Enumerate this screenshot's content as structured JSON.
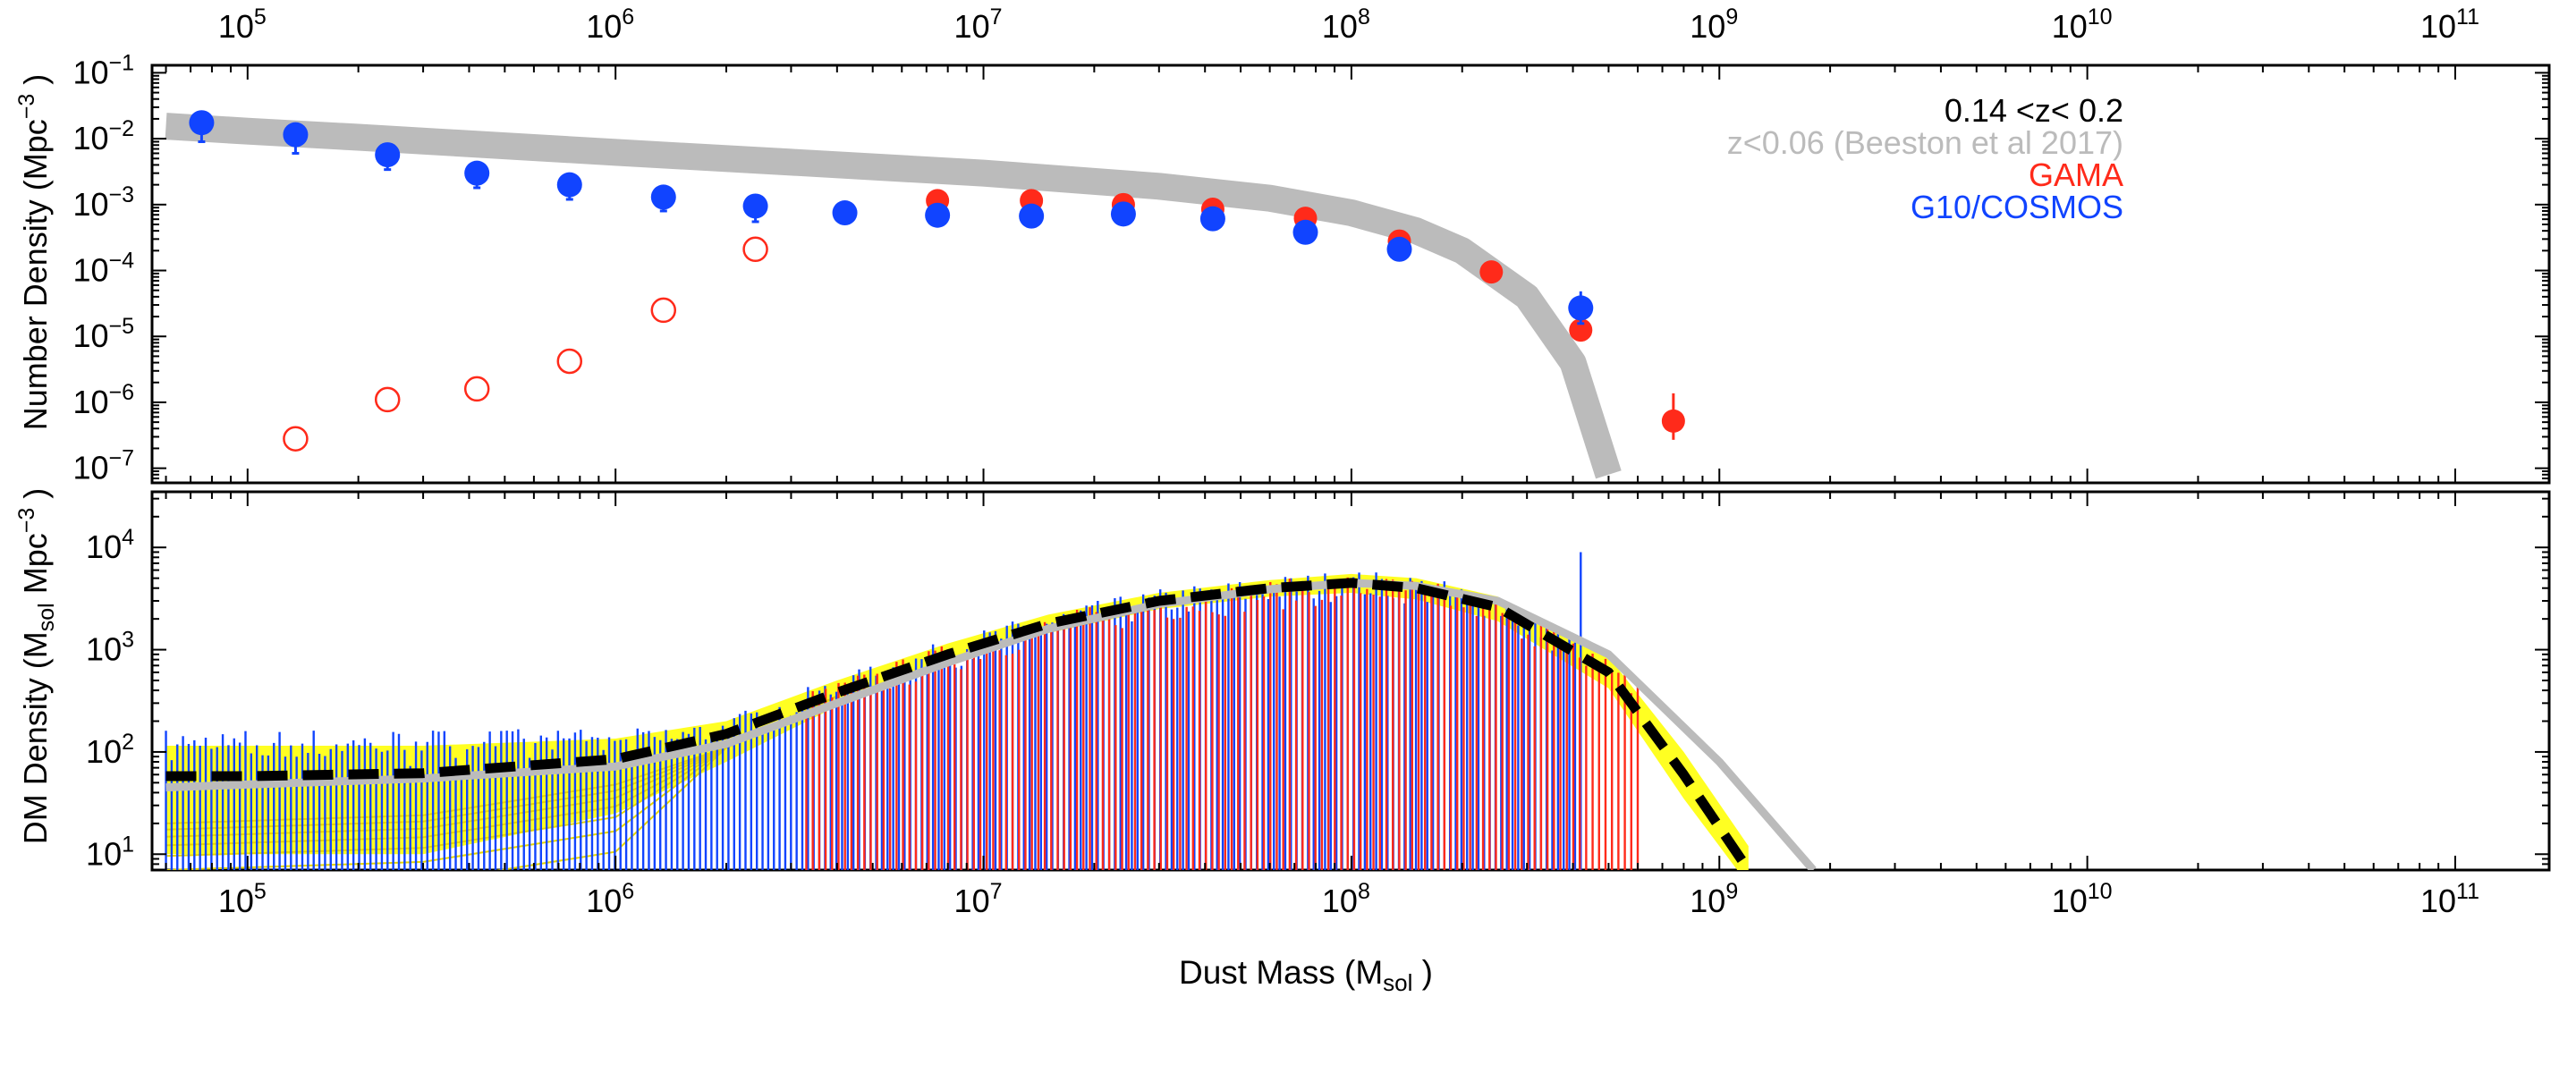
{
  "colors": {
    "red": "#ff2a1a",
    "blue": "#1144ff",
    "grey": "#bbbbbb",
    "yellow": "#ffff22",
    "black": "#000000"
  },
  "labels": {
    "legend_z": "0.14 <z< 0.2",
    "legend_beeston": "z<0.06 (Beeston et al 2017)",
    "legend_gama": "GAMA",
    "legend_cosmos": "G10/COSMOS",
    "xlabel_main": "Dust Mass (M",
    "xlabel_sub": "sol",
    "xlabel_end": " )",
    "ylabel_top_main": "Number Density (Mpc",
    "ylabel_top_sup": "−3",
    "ylabel_top_end": " )",
    "ylabel_bot_main": "DM Density (M",
    "ylabel_bot_sub": "sol",
    "ylabel_bot_mid": " Mpc",
    "ylabel_bot_sup": "−3",
    "ylabel_bot_end": " )"
  },
  "chart_data": [
    {
      "type": "scatter",
      "title": "",
      "xlabel": "Dust Mass (Msol)",
      "ylabel": "Number Density (Mpc^-3)",
      "xscale": "log",
      "yscale": "log",
      "xlim": [
        55000,
        180000000000
      ],
      "ylim": [
        6e-08,
        0.13
      ],
      "x_tick_exponents": [
        5,
        6,
        7,
        8,
        9,
        10,
        11
      ],
      "y_tick_exponents": [
        -7,
        -6,
        -5,
        -4,
        -3,
        -2,
        -1
      ],
      "series": [
        {
          "name": "z<0.06 (Beeston et al 2017)",
          "style": "band",
          "x": [
            60000,
            100000,
            200000,
            500000,
            1000000,
            3000000,
            10000000,
            30000000,
            60000000,
            100000000,
            150000000,
            200000000,
            300000000,
            400000000,
            500000000
          ],
          "y": [
            0.0155,
            0.013,
            0.0105,
            0.0078,
            0.0062,
            0.0044,
            0.003,
            0.0019,
            0.00125,
            0.00075,
            0.0004,
            0.0002,
            4e-05,
            4e-06,
            8e-08
          ]
        },
        {
          "name": "GAMA",
          "style": "filled",
          "x": [
            7500000,
            13500000,
            24000000,
            42000000,
            75000000,
            135000000,
            240000000,
            420000000,
            750000000
          ],
          "y": [
            0.00115,
            0.00115,
            0.001,
            0.00085,
            0.00062,
            0.00028,
            9.5e-05,
            1.25e-05,
            5.2e-07
          ],
          "err_low": [
            0,
            0,
            0,
            0,
            0,
            0,
            0,
            0,
            2.5e-07
          ],
          "err_high": [
            0,
            0,
            0,
            0,
            0,
            0,
            0,
            0,
            8.5e-07
          ]
        },
        {
          "name": "GAMA (incomplete)",
          "style": "open",
          "x": [
            135000,
            240000,
            420000,
            750000,
            1350000,
            2400000
          ],
          "y": [
            2.8e-07,
            1.1e-06,
            1.6e-06,
            4.2e-06,
            2.5e-05,
            0.00021
          ]
        },
        {
          "name": "G10/COSMOS",
          "style": "filled",
          "x": [
            75000,
            135000,
            240000,
            420000,
            750000,
            1350000,
            2400000,
            4200000,
            7500000,
            13500000,
            24000000,
            42000000,
            75000000,
            135000000,
            420000000
          ],
          "y": [
            0.0175,
            0.0115,
            0.0057,
            0.003,
            0.002,
            0.0013,
            0.00095,
            0.00075,
            0.00069,
            0.00067,
            0.00072,
            0.00061,
            0.00038,
            0.00021,
            2.7e-05
          ],
          "err_low": [
            0.0085,
            0.0055,
            0.0023,
            0.0012,
            0.0008,
            0.0005,
            0.0004,
            0.0002,
            0.00018,
            0.00017,
            0.00019,
            0.00016,
            9e-05,
            4e-05,
            1.13e-05
          ],
          "err_high": [
            0,
            0,
            0,
            0,
            0.0003,
            0.0002,
            0.0003,
            0,
            0,
            0,
            0,
            0,
            0,
            0,
            2.13e-05
          ]
        }
      ],
      "legend": [
        "0.14 <z< 0.2",
        "z<0.06 (Beeston et al 2017)",
        "GAMA",
        "G10/COSMOS"
      ]
    },
    {
      "type": "line",
      "title": "",
      "xlabel": "Dust Mass (Msol)",
      "ylabel": "DM Density (Msol Mpc^-3)",
      "xscale": "log",
      "yscale": "log",
      "xlim": [
        55000,
        180000000000
      ],
      "ylim": [
        7,
        35000
      ],
      "x_tick_exponents": [
        5,
        6,
        7,
        8,
        9,
        10,
        11
      ],
      "y_tick_exponents": [
        1,
        2,
        3,
        4
      ],
      "series": [
        {
          "name": "fit (black dashed)",
          "style": "dashed",
          "x": [
            60000,
            100000,
            300000,
            1000000,
            2000000,
            4000000,
            8000000,
            15000000,
            30000000,
            60000000,
            100000000,
            150000000,
            250000000,
            500000000,
            800000000,
            1200000000
          ],
          "y": [
            58,
            58,
            62,
            85,
            150,
            380,
            900,
            1800,
            3000,
            4000,
            4500,
            4000,
            2600,
            600,
            60,
            7
          ]
        },
        {
          "name": "z<0.06 (Beeston et al 2017)",
          "style": "grey-line",
          "x": [
            60000,
            100000,
            300000,
            1000000,
            2000000,
            4000000,
            8000000,
            15000000,
            30000000,
            60000000,
            100000000,
            150000000,
            250000000,
            500000000,
            1000000000,
            1800000000
          ],
          "y": [
            45,
            48,
            55,
            72,
            120,
            300,
            750,
            1600,
            2800,
            3900,
            4500,
            4200,
            3000,
            900,
            80,
            7
          ]
        },
        {
          "name": "uncertainty band upper",
          "style": "yellow-upper",
          "x": [
            60000,
            300000,
            1000000,
            2000000,
            4000000,
            8000000,
            15000000,
            30000000,
            60000000,
            100000000,
            150000000,
            250000000,
            500000000,
            800000000,
            1200000000
          ],
          "y": [
            115,
            115,
            135,
            200,
            500,
            1150,
            2200,
            3600,
            4800,
            5500,
            5000,
            3300,
            850,
            100,
            12
          ]
        },
        {
          "name": "uncertainty band lower",
          "style": "yellow-lower",
          "x": [
            60000,
            300000,
            1000000,
            2000000,
            4000000,
            8000000,
            15000000,
            30000000,
            60000000,
            100000000,
            150000000,
            250000000,
            500000000,
            800000000,
            1200000000
          ],
          "y": [
            10,
            10,
            25,
            80,
            280,
            720,
            1450,
            2500,
            3300,
            3600,
            3100,
            1900,
            420,
            35,
            5
          ]
        }
      ],
      "bar_clusters": [
        {
          "name": "G10/COSMOS",
          "color": "blue",
          "x_range": [
            60000,
            420000000
          ],
          "note": "dense vertical lines"
        },
        {
          "name": "GAMA",
          "color": "red",
          "x_range": [
            3300000,
            600000000
          ],
          "note": "dense vertical lines"
        }
      ]
    }
  ]
}
